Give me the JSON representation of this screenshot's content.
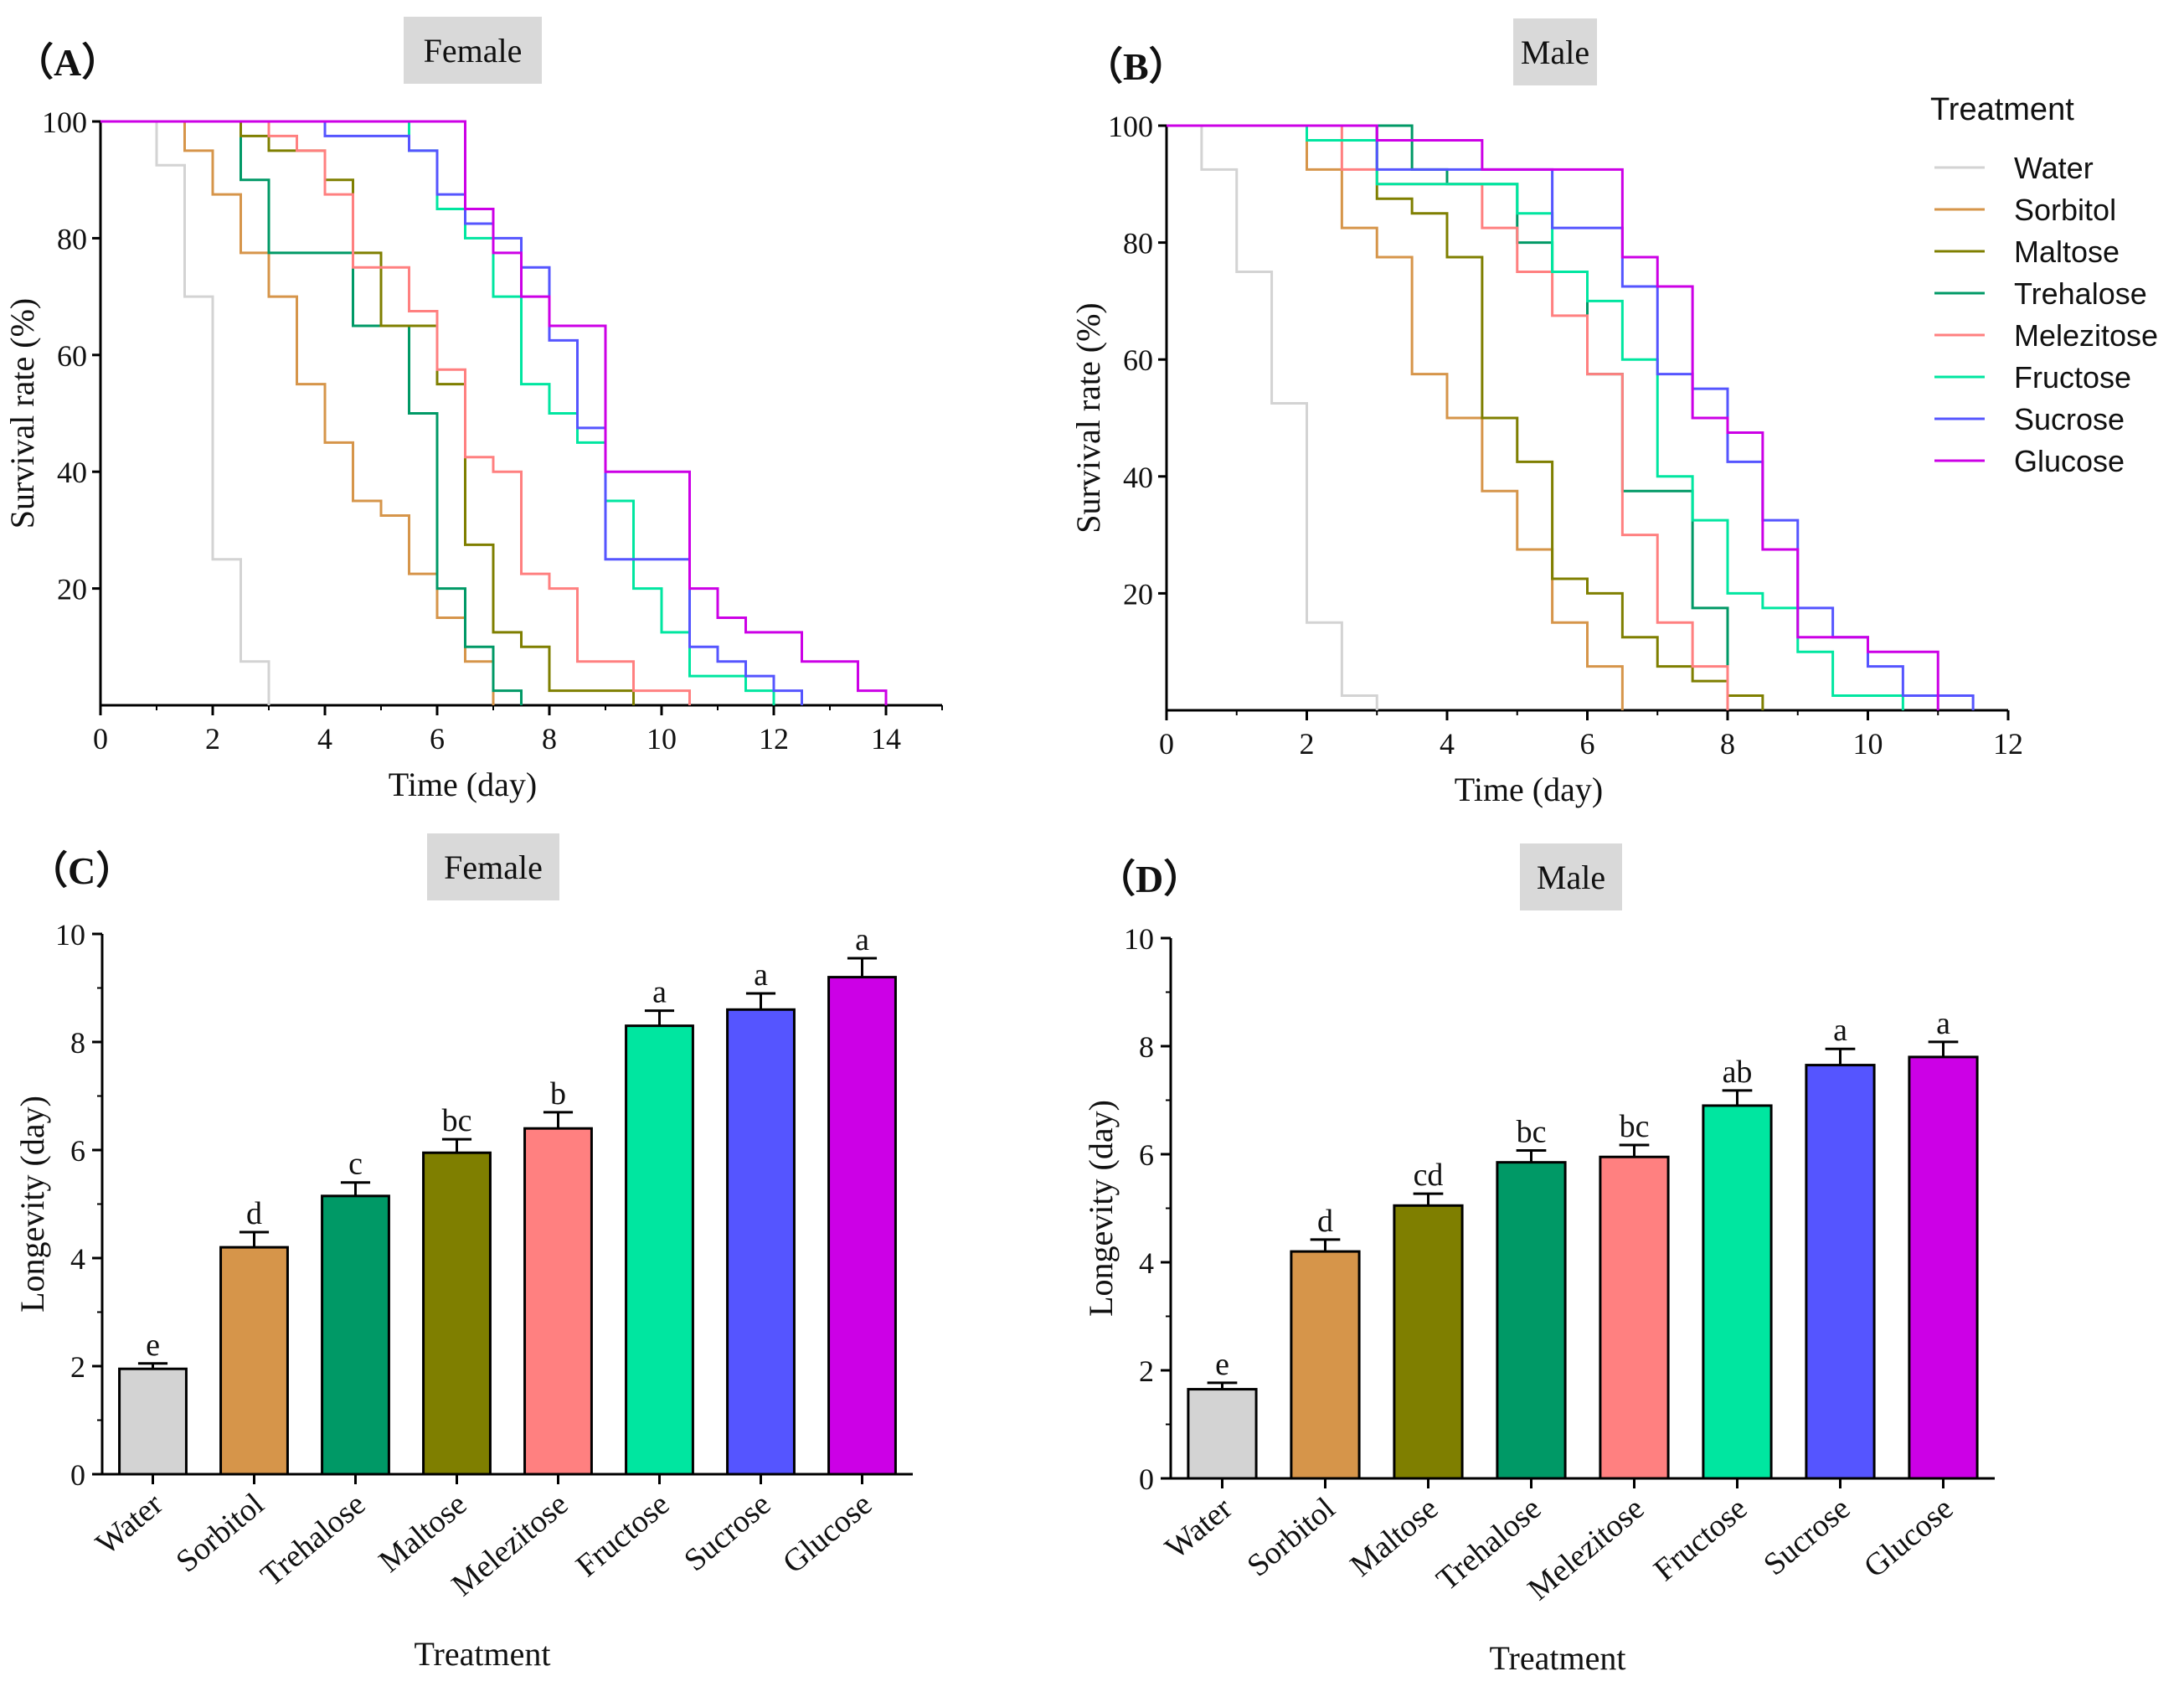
{
  "figure": {
    "legend_title": "Treatment",
    "series_colors": {
      "Water": "#d3d3d3",
      "Sorbitol": "#d6954a",
      "Maltose": "#7f7f00",
      "Trehalose": "#009966",
      "Melezitose": "#ff8080",
      "Fructose": "#00e6a0",
      "Sucrose": "#5555ff",
      "Glucose": "#cc00e6"
    }
  },
  "chart_data": [
    {
      "id": "A",
      "panel_label": "（A）",
      "title": "Female",
      "type": "line",
      "step": true,
      "xlabel": "Time (day)",
      "ylabel": "Survival rate (%)",
      "xlim": [
        0,
        15
      ],
      "ylim": [
        0,
        100
      ],
      "xticks": [
        "0",
        "2",
        "4",
        "6",
        "8",
        "10",
        "12",
        "14"
      ],
      "yticks": [
        "20",
        "40",
        "60",
        "80",
        "100"
      ],
      "series": [
        {
          "name": "Water",
          "x": [
            0,
            1,
            1.5,
            2,
            2.5,
            3
          ],
          "y": [
            100,
            92.5,
            70,
            25,
            7.5,
            0
          ]
        },
        {
          "name": "Sorbitol",
          "x": [
            0,
            1.5,
            2,
            2.5,
            3,
            3.5,
            4,
            4.5,
            5,
            5.5,
            6,
            6.5,
            7
          ],
          "y": [
            100,
            95,
            87.5,
            77.5,
            70,
            55,
            45,
            35,
            32.5,
            22.5,
            15,
            7.5,
            0
          ]
        },
        {
          "name": "Trehalose",
          "x": [
            0,
            2.5,
            3,
            4.5,
            5.5,
            6,
            6.5,
            7,
            7.5
          ],
          "y": [
            100,
            90,
            77.5,
            65,
            50,
            20,
            10,
            2.5,
            0
          ]
        },
        {
          "name": "Maltose",
          "x": [
            0,
            2.5,
            3,
            4,
            4.5,
            5,
            6,
            6.5,
            7,
            7.5,
            8,
            9.5
          ],
          "y": [
            100,
            97.5,
            95,
            90,
            77.5,
            65,
            55,
            27.5,
            12.5,
            10,
            2.5,
            0
          ]
        },
        {
          "name": "Melezitose",
          "x": [
            0,
            3,
            3.5,
            4,
            4.5,
            5.5,
            6,
            6.5,
            7,
            7.5,
            8,
            8.5,
            9.5,
            10.5
          ],
          "y": [
            100,
            97.5,
            95,
            87.5,
            75,
            67.5,
            57.5,
            42.5,
            40,
            22.5,
            20,
            7.5,
            2.5,
            0
          ]
        },
        {
          "name": "Fructose",
          "x": [
            0,
            5.5,
            6,
            6.5,
            7,
            7.5,
            8,
            8.5,
            9,
            9.5,
            10,
            10.5,
            11.5,
            12
          ],
          "y": [
            100,
            95,
            85,
            80,
            70,
            55,
            50,
            45,
            35,
            20,
            12.5,
            5,
            2.5,
            0
          ]
        },
        {
          "name": "Sucrose",
          "x": [
            0,
            4,
            5.5,
            6,
            6.5,
            7,
            7.5,
            8,
            8.5,
            9,
            10.5,
            11,
            11.5,
            12,
            12.5
          ],
          "y": [
            100,
            97.5,
            95,
            87.5,
            82.5,
            80,
            75,
            62.5,
            47.5,
            25,
            10,
            7.5,
            5,
            2.5,
            0
          ]
        },
        {
          "name": "Glucose",
          "x": [
            0,
            6.5,
            7,
            7.5,
            8,
            9,
            10.5,
            11,
            11.5,
            12.5,
            13.5,
            14
          ],
          "y": [
            100,
            85,
            77.5,
            70,
            65,
            40,
            20,
            15,
            12.5,
            7.5,
            2.5,
            0
          ]
        }
      ]
    },
    {
      "id": "B",
      "panel_label": "（B）",
      "title": "Male",
      "type": "line",
      "step": true,
      "xlabel": "Time (day)",
      "ylabel": "Survival rate (%)",
      "xlim": [
        0,
        12
      ],
      "ylim": [
        0,
        100
      ],
      "xticks": [
        "0",
        "2",
        "4",
        "6",
        "8",
        "10",
        "12"
      ],
      "yticks": [
        "20",
        "40",
        "60",
        "80",
        "100"
      ],
      "series": [
        {
          "name": "Water",
          "x": [
            0,
            0.5,
            1,
            1.5,
            2,
            2.5,
            3
          ],
          "y": [
            100,
            92.5,
            75,
            52.5,
            15,
            2.5,
            0
          ]
        },
        {
          "name": "Sorbitol",
          "x": [
            0,
            2,
            2.5,
            3,
            3.5,
            4,
            4.5,
            5,
            5.5,
            6,
            6.5
          ],
          "y": [
            100,
            92.5,
            82.5,
            77.5,
            57.5,
            50,
            37.5,
            27.5,
            15,
            7.5,
            0
          ]
        },
        {
          "name": "Maltose",
          "x": [
            0,
            3,
            3.5,
            4,
            4.5,
            5,
            5.5,
            6,
            6.5,
            7,
            7.5,
            8,
            8.5
          ],
          "y": [
            100,
            87.5,
            85,
            77.5,
            50,
            42.5,
            22.5,
            20,
            12.5,
            7.5,
            5,
            2.5,
            0
          ]
        },
        {
          "name": "Trehalose",
          "x": [
            0,
            3.5,
            4,
            5,
            5.5,
            6,
            6.5,
            7.5,
            8
          ],
          "y": [
            100,
            92.5,
            90,
            80,
            75,
            57.5,
            37.5,
            17.5,
            7.5
          ]
        },
        {
          "name": "Melezitose",
          "x": [
            0,
            2.5,
            3,
            4.5,
            5,
            5.5,
            6,
            6.5,
            7,
            7.5,
            8
          ],
          "y": [
            100,
            92.5,
            90,
            82.5,
            75,
            67.5,
            57.5,
            30,
            15,
            7.5,
            0
          ]
        },
        {
          "name": "Fructose",
          "x": [
            0,
            2,
            3,
            5,
            5.5,
            6,
            6.5,
            7,
            7.5,
            8,
            8.5,
            9,
            9.5,
            10.5
          ],
          "y": [
            100,
            97.5,
            90,
            85,
            75,
            70,
            60,
            40,
            32.5,
            20,
            17.5,
            10,
            2.5,
            0
          ]
        },
        {
          "name": "Sucrose",
          "x": [
            0,
            3,
            5.5,
            6.5,
            7,
            7.5,
            8,
            8.5,
            9,
            9.5,
            10,
            10.5,
            11,
            11.5
          ],
          "y": [
            100,
            92.5,
            82.5,
            72.5,
            57.5,
            55,
            42.5,
            32.5,
            17.5,
            12.5,
            7.5,
            2.5,
            2.5,
            0
          ]
        },
        {
          "name": "Glucose",
          "x": [
            0,
            3,
            4.5,
            6.5,
            7,
            7.5,
            8,
            8.5,
            9,
            9.5,
            10,
            11
          ],
          "y": [
            100,
            97.5,
            92.5,
            77.5,
            72.5,
            50,
            47.5,
            27.5,
            12.5,
            12.5,
            10,
            0
          ]
        }
      ]
    },
    {
      "id": "C",
      "panel_label": "（C）",
      "title": "Female",
      "type": "bar",
      "xlabel": "Treatment",
      "ylabel": "Longevity (day)",
      "ylim": [
        0,
        10
      ],
      "yticks": [
        "0",
        "2",
        "4",
        "6",
        "8",
        "10"
      ],
      "categories": [
        "Water",
        "Sorbitol",
        "Trehalose",
        "Maltose",
        "Melezitose",
        "Fructose",
        "Sucrose",
        "Glucose"
      ],
      "values": [
        1.95,
        4.2,
        5.15,
        5.95,
        6.4,
        8.3,
        8.6,
        9.2
      ],
      "errors": [
        0.1,
        0.28,
        0.25,
        0.25,
        0.3,
        0.28,
        0.3,
        0.35
      ],
      "letters": [
        "e",
        "d",
        "c",
        "bc",
        "b",
        "a",
        "a",
        "a"
      ]
    },
    {
      "id": "D",
      "panel_label": "（D）",
      "title": "Male",
      "type": "bar",
      "xlabel": "Treatment",
      "ylabel": "Longevity (day)",
      "ylim": [
        0,
        10
      ],
      "yticks": [
        "0",
        "2",
        "4",
        "6",
        "8",
        "10"
      ],
      "categories": [
        "Water",
        "Sorbitol",
        "Maltose",
        "Trehalose",
        "Melezitose",
        "Fructose",
        "Sucrose",
        "Glucose"
      ],
      "values": [
        1.65,
        4.2,
        5.05,
        5.85,
        5.95,
        6.9,
        7.65,
        7.8
      ],
      "errors": [
        0.12,
        0.22,
        0.22,
        0.22,
        0.22,
        0.28,
        0.3,
        0.28
      ],
      "letters": [
        "e",
        "d",
        "cd",
        "bc",
        "bc",
        "ab",
        "a",
        "a"
      ]
    }
  ]
}
